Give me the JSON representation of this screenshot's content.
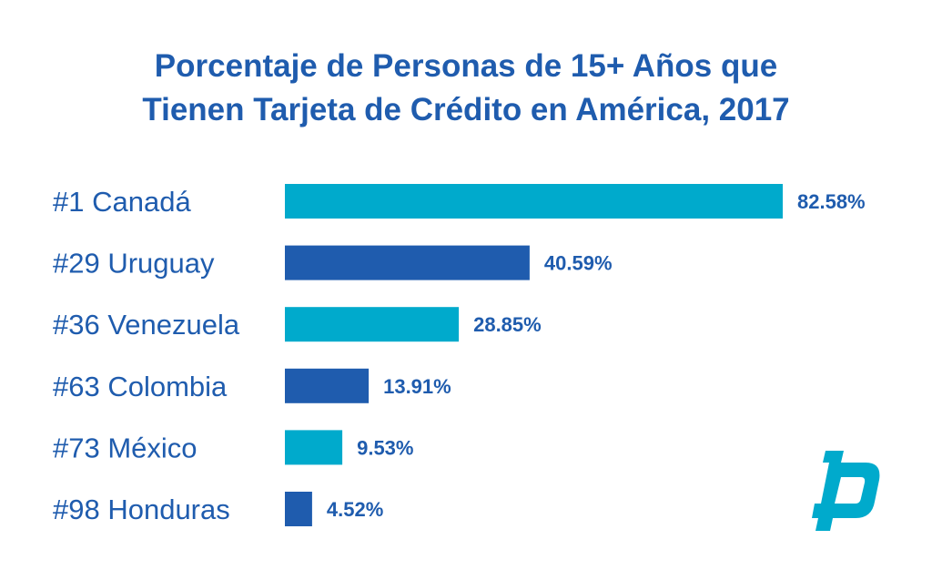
{
  "chart_data": {
    "type": "bar",
    "orientation": "horizontal",
    "title_lines": [
      "Porcentaje de Personas de 15+ Años que",
      "Tienen Tarjeta de Crédito en América, 2017"
    ],
    "categories": [
      "#1 Canadá",
      "#29 Uruguay",
      "#36 Venezuela",
      "#63 Colombia",
      "#73 México",
      "#98 Honduras"
    ],
    "values": [
      82.58,
      40.59,
      28.85,
      13.91,
      9.53,
      4.52
    ],
    "value_labels": [
      "82.58%",
      "40.59%",
      "28.85%",
      "13.91%",
      "9.53%",
      "4.52%"
    ],
    "bar_colors": [
      "#00aacc",
      "#1f5cae",
      "#00aacc",
      "#1f5cae",
      "#00aacc",
      "#1f5cae"
    ],
    "xlim": [
      0,
      82.58
    ],
    "grid": false,
    "legend": "none"
  },
  "colors": {
    "title": "#1f5cae",
    "label": "#1f5cae",
    "accent_cyan": "#00aacc",
    "accent_blue": "#1f5cae"
  },
  "logo": {
    "icon": "brand-logo-icon",
    "color": "#00aacc"
  }
}
